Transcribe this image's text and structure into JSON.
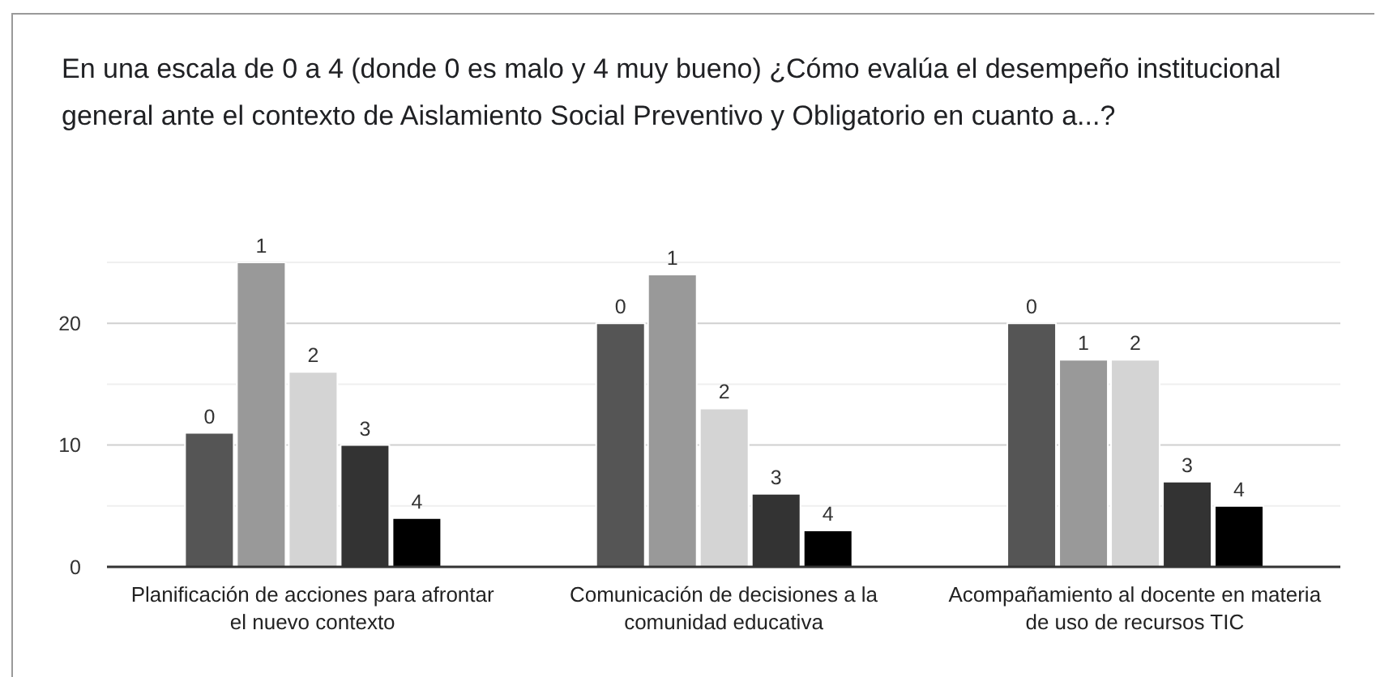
{
  "chart_data": {
    "type": "bar",
    "title": "En una escala de 0 a 4 (donde 0 es malo y 4 muy bueno) ¿Cómo evalúa el desempeño institucional general ante el contexto de Aislamiento Social Preventivo y Obligatorio en cuanto a...?",
    "categories": [
      "Planificación de acciones para afrontar el nuevo contexto",
      "Comunicación de decisiones a la comunidad educativa",
      "Acompañamiento al docente en materia de uso de recursos TIC"
    ],
    "series": [
      {
        "name": "0",
        "color": "#555555",
        "values": [
          11,
          20,
          20
        ]
      },
      {
        "name": "1",
        "color": "#999999",
        "values": [
          25,
          24,
          17
        ]
      },
      {
        "name": "2",
        "color": "#d4d4d4",
        "values": [
          16,
          13,
          17
        ]
      },
      {
        "name": "3",
        "color": "#333333",
        "values": [
          10,
          6,
          7
        ]
      },
      {
        "name": "4",
        "color": "#000000",
        "values": [
          4,
          3,
          5
        ]
      }
    ],
    "ylim": [
      0,
      25
    ],
    "yticks": [
      0,
      {
        "value": 5,
        "label": null
      },
      10,
      {
        "value": 15,
        "label": null
      },
      20,
      {
        "value": 25,
        "label": null
      }
    ],
    "grid": "y"
  }
}
